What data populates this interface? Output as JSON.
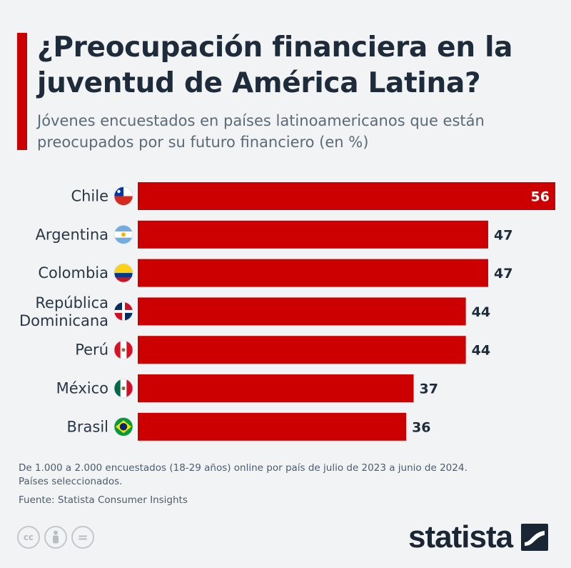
{
  "title_lines": [
    "¿Preocupación financiera en la",
    "juventud de América Latina?"
  ],
  "subtitle_lines": [
    "Jóvenes encuestados en países latinoamericanos que están",
    "preocupados por su futuro financiero (en %)"
  ],
  "colors": {
    "bar": "#cc0000",
    "accent": "#cc0000",
    "value_inside": "#ffffff",
    "value_outside": "#1d2b3a"
  },
  "chart_data": {
    "type": "bar",
    "orientation": "horizontal",
    "title": "¿Preocupación financiera en la juventud de América Latina?",
    "subtitle": "Jóvenes encuestados en países latinoamericanos que están preocupados por su futuro financiero (en %)",
    "categories": [
      {
        "lines": [
          "Chile"
        ],
        "flag": "chile-flag-icon"
      },
      {
        "lines": [
          "Argentina"
        ],
        "flag": "argentina-flag-icon"
      },
      {
        "lines": [
          "Colombia"
        ],
        "flag": "colombia-flag-icon"
      },
      {
        "lines": [
          "República",
          "Dominicana"
        ],
        "flag": "dominican-republic-flag-icon"
      },
      {
        "lines": [
          "Perú"
        ],
        "flag": "peru-flag-icon"
      },
      {
        "lines": [
          "México"
        ],
        "flag": "mexico-flag-icon"
      },
      {
        "lines": [
          "Brasil"
        ],
        "flag": "brazil-flag-icon"
      }
    ],
    "values": [
      56,
      47,
      47,
      44,
      44,
      37,
      36
    ],
    "xlim": [
      0,
      56
    ],
    "unit": "%",
    "grid": false,
    "legend": "none"
  },
  "footnote_lines": [
    "De 1.000 a 2.000 encuestados (18-29 años) online por país de julio de 2023 a junio de 2024.",
    "Países seleccionados."
  ],
  "source": "Fuente: Statista Consumer Insights",
  "licenses": [
    {
      "icon": "creative-commons-icon",
      "glyph": "cc"
    },
    {
      "icon": "attribution-person-icon",
      "glyph": ""
    },
    {
      "icon": "no-derivatives-icon",
      "glyph": "="
    }
  ],
  "brand": {
    "name": "statista",
    "icon": "statista-logo-icon"
  }
}
